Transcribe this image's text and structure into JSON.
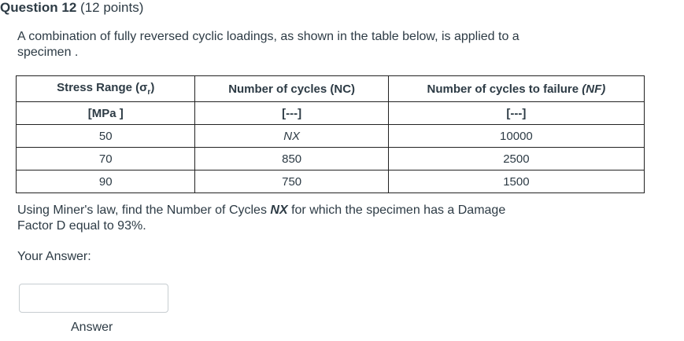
{
  "question": {
    "title": "Question 12",
    "points": "(12 points)"
  },
  "intro_text": "A combination of fully reversed cyclic loadings, as shown in the table below, is applied to a specimen .",
  "table": {
    "headers": {
      "stress_range": "Stress Range (σ",
      "stress_sub": "r",
      "stress_close": ")",
      "cycles": "Number of  cycles (NC)",
      "failure_prefix": "Number of cycles to failure ",
      "failure_italic": "(NF)"
    },
    "units": {
      "stress": "[MPa ]",
      "cycles": "[---]",
      "failure": "[---]"
    },
    "rows": [
      {
        "stress": "50",
        "cycles": "NX",
        "failure": "10000"
      },
      {
        "stress": "70",
        "cycles": "850",
        "failure": "2500"
      },
      {
        "stress": "90",
        "cycles": "750",
        "failure": "1500"
      }
    ]
  },
  "question_text": {
    "before": "Using Miner's law, find the Number of Cycles ",
    "nx": "NX",
    "after": " for which the specimen has a Damage Factor D equal to 93%."
  },
  "your_answer_label": "Your Answer:",
  "answer_input": {
    "value": "",
    "placeholder": ""
  },
  "answer_caption": "Answer"
}
